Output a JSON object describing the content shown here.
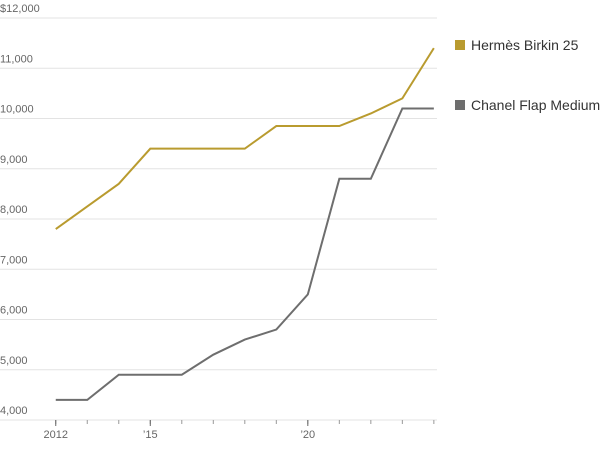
{
  "chart_data": {
    "type": "line",
    "x": [
      2012,
      2013,
      2014,
      2015,
      2016,
      2017,
      2018,
      2019,
      2020,
      2021,
      2022,
      2023,
      2024
    ],
    "series": [
      {
        "name": "Hermès Birkin 25",
        "color": "#b99b2f",
        "values": [
          7800,
          8250,
          8700,
          9400,
          9400,
          9400,
          9400,
          9850,
          9850,
          9850,
          10100,
          10400,
          11400
        ]
      },
      {
        "name": "Chanel Flap Medium",
        "color": "#6e6e6e",
        "values": [
          4400,
          4400,
          4900,
          4900,
          4900,
          5300,
          5600,
          5800,
          6500,
          8800,
          8800,
          10200,
          10200
        ]
      }
    ],
    "xlim": [
      2011.5,
      2024.1
    ],
    "xticks": [
      2012,
      {
        "value": 2015,
        "label": "’15"
      },
      {
        "value": 2020,
        "label": "’20"
      }
    ],
    "ylim": [
      4000,
      12000
    ],
    "yticks": [
      {
        "value": 4000,
        "label": "4,000"
      },
      {
        "value": 5000,
        "label": "5,000"
      },
      {
        "value": 6000,
        "label": "6,000"
      },
      {
        "value": 7000,
        "label": "7,000"
      },
      {
        "value": 8000,
        "label": "8,000"
      },
      {
        "value": 9000,
        "label": "9,000"
      },
      {
        "value": 10000,
        "label": "10,000"
      },
      {
        "value": 11000,
        "label": "11,000"
      },
      {
        "value": 12000,
        "label": "$12,000"
      }
    ],
    "grid": true
  }
}
